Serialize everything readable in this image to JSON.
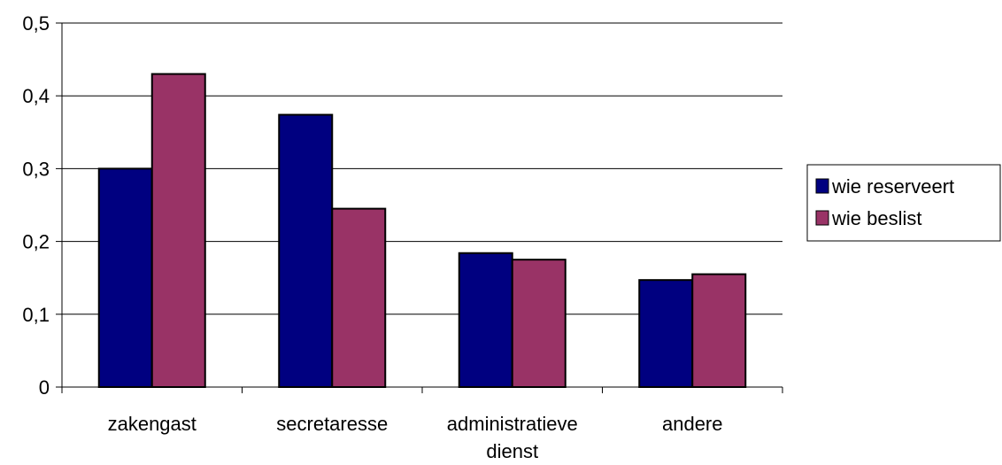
{
  "chart_data": {
    "type": "bar",
    "categories": [
      [
        "zakengast"
      ],
      [
        "secretaresse"
      ],
      [
        "administratieve",
        "dienst"
      ],
      [
        "andere"
      ]
    ],
    "series": [
      {
        "name": "wie reserveert",
        "color": "#000080",
        "values": [
          0.3,
          0.374,
          0.184,
          0.147
        ]
      },
      {
        "name": "wie beslist",
        "color": "#993366",
        "values": [
          0.43,
          0.245,
          0.175,
          0.155
        ]
      }
    ],
    "yticks": [
      "0",
      "0,1",
      "0,2",
      "0,3",
      "0,4",
      "0,5"
    ],
    "ylim": [
      0,
      0.5
    ],
    "grid": true,
    "legend_position": "right"
  }
}
